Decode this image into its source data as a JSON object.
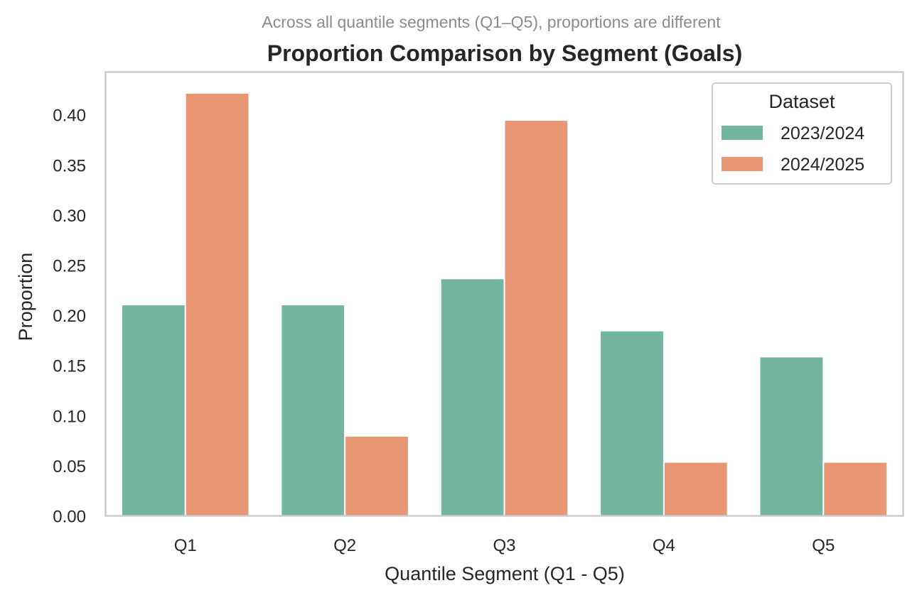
{
  "chart_data": {
    "type": "bar",
    "title": "Proportion Comparison by Segment (Goals)",
    "subtitle": "Across all quantile segments (Q1–Q5), proportions are different",
    "xlabel": "Quantile Segment (Q1 - Q5)",
    "ylabel": "Proportion",
    "categories": [
      "Q1",
      "Q2",
      "Q3",
      "Q4",
      "Q5"
    ],
    "series": [
      {
        "name": "2023/2024",
        "color": "#73b5a0",
        "values": [
          0.21,
          0.21,
          0.236,
          0.184,
          0.158
        ]
      },
      {
        "name": "2024/2025",
        "color": "#e89674",
        "values": [
          0.421,
          0.079,
          0.394,
          0.053,
          0.053
        ]
      }
    ],
    "ylim": [
      0,
      0.4426
    ],
    "yticks": [
      "0.00",
      "0.05",
      "0.10",
      "0.15",
      "0.20",
      "0.25",
      "0.30",
      "0.35",
      "0.40"
    ],
    "grid": false,
    "legend": {
      "title": "Dataset",
      "position": "top-right"
    },
    "frame_color": "#cccccc"
  }
}
